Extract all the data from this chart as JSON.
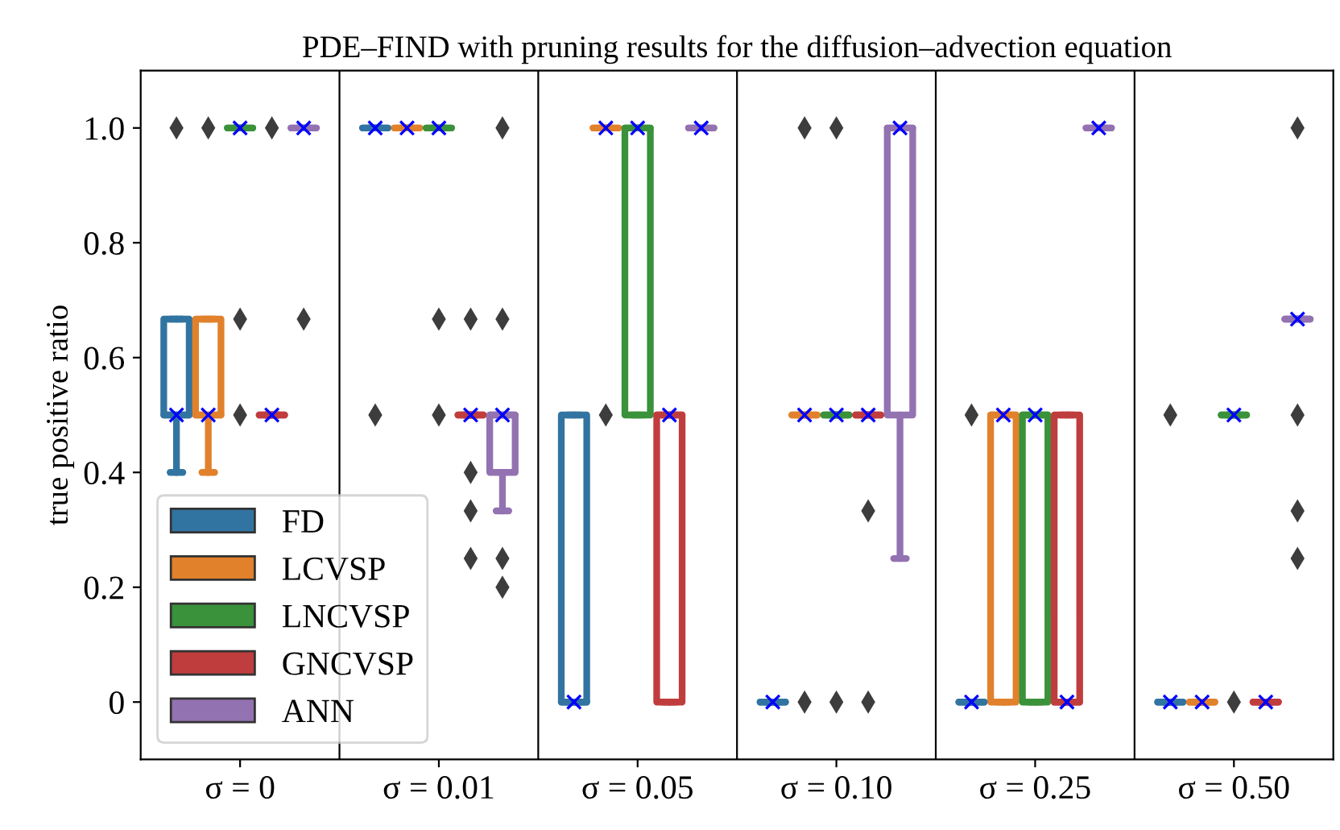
{
  "chart_data": {
    "type": "box",
    "title": "PDE–FIND with pruning results for the diffusion–advection equation",
    "ylabel": "true positive ratio",
    "categories": [
      "σ = 0",
      "σ = 0.01",
      "σ = 0.05",
      "σ = 0.10",
      "σ = 0.25",
      "σ = 0.50"
    ],
    "ylim": [
      -0.1,
      1.1
    ],
    "yticks": [
      {
        "value": 0,
        "label": "0"
      },
      0.2,
      0.4,
      0.6,
      0.8,
      {
        "value": 1,
        "label": "1.0"
      }
    ],
    "legend": "bottom left",
    "grid": false,
    "series": [
      {
        "name": "FD",
        "color": "#3274a1",
        "boxes": [
          {
            "low": 0.4,
            "q1": 0.5,
            "median": 0.5,
            "q3": 0.667,
            "high": 0.667,
            "mean": 0.5,
            "outliers": [
              1.0
            ]
          },
          {
            "low": 1,
            "q1": 1,
            "median": 1,
            "q3": 1,
            "high": 1,
            "mean": 1,
            "outliers": [
              0.5
            ]
          },
          {
            "low": 0,
            "q1": 0,
            "median": 0,
            "q3": 0.5,
            "high": 0.5,
            "mean": 0
          },
          {
            "low": 0,
            "q1": 0,
            "median": 0,
            "q3": 0,
            "high": 0,
            "mean": 0
          },
          {
            "low": 0,
            "q1": 0,
            "median": 0,
            "q3": 0,
            "high": 0,
            "mean": 0,
            "outliers": [
              0.5
            ]
          },
          {
            "low": 0,
            "q1": 0,
            "median": 0,
            "q3": 0,
            "high": 0,
            "mean": 0,
            "outliers": [
              0.5
            ]
          }
        ]
      },
      {
        "name": "LCVSP",
        "color": "#e1812c",
        "boxes": [
          {
            "low": 0.4,
            "q1": 0.5,
            "median": 0.5,
            "q3": 0.667,
            "high": 0.667,
            "mean": 0.5,
            "outliers": [
              1.0
            ]
          },
          {
            "low": 1,
            "q1": 1,
            "median": 1,
            "q3": 1,
            "high": 1,
            "mean": 1
          },
          {
            "low": 1,
            "q1": 1,
            "median": 1,
            "q3": 1,
            "high": 1,
            "mean": 1,
            "outliers": [
              0.5
            ]
          },
          {
            "low": 0.5,
            "q1": 0.5,
            "median": 0.5,
            "q3": 0.5,
            "high": 0.5,
            "mean": 0.5,
            "outliers": [
              1.0,
              0
            ]
          },
          {
            "low": 0,
            "q1": 0,
            "median": 0.5,
            "q3": 0.5,
            "high": 0.5,
            "mean": 0.5
          },
          {
            "low": 0,
            "q1": 0,
            "median": 0,
            "q3": 0,
            "high": 0,
            "mean": 0
          }
        ]
      },
      {
        "name": "LNCVSP",
        "color": "#3a923a",
        "boxes": [
          {
            "low": 1,
            "q1": 1,
            "median": 1,
            "q3": 1,
            "high": 1,
            "mean": 1,
            "outliers": [
              0.667,
              0.5
            ]
          },
          {
            "low": 1,
            "q1": 1,
            "median": 1,
            "q3": 1,
            "high": 1,
            "mean": 1,
            "outliers": [
              0.667,
              0.5
            ]
          },
          {
            "low": 0.5,
            "q1": 0.5,
            "median": 1,
            "q3": 1,
            "high": 1,
            "mean": 1
          },
          {
            "low": 0.5,
            "q1": 0.5,
            "median": 0.5,
            "q3": 0.5,
            "high": 0.5,
            "mean": 0.5,
            "outliers": [
              1.0,
              0
            ]
          },
          {
            "low": 0,
            "q1": 0,
            "median": 0.5,
            "q3": 0.5,
            "high": 0.5,
            "mean": 0.5
          },
          {
            "low": 0.5,
            "q1": 0.5,
            "median": 0.5,
            "q3": 0.5,
            "high": 0.5,
            "mean": 0.5,
            "outliers": [
              0
            ]
          }
        ]
      },
      {
        "name": "GNCVSP",
        "color": "#c03d3e",
        "boxes": [
          {
            "low": 0.5,
            "q1": 0.5,
            "median": 0.5,
            "q3": 0.5,
            "high": 0.5,
            "mean": 0.5,
            "outliers": [
              1.0
            ]
          },
          {
            "low": 0.5,
            "q1": 0.5,
            "median": 0.5,
            "q3": 0.5,
            "high": 0.5,
            "mean": 0.5,
            "outliers": [
              0.667,
              0.4,
              0.333,
              0.25
            ]
          },
          {
            "low": 0,
            "q1": 0,
            "median": 0.5,
            "q3": 0.5,
            "high": 0.5,
            "mean": 0.5
          },
          {
            "low": 0.5,
            "q1": 0.5,
            "median": 0.5,
            "q3": 0.5,
            "high": 0.5,
            "mean": 0.5,
            "outliers": [
              0.333,
              0
            ]
          },
          {
            "low": 0,
            "q1": 0,
            "median": 0,
            "q3": 0.5,
            "high": 0.5,
            "mean": 0
          },
          {
            "low": 0,
            "q1": 0,
            "median": 0,
            "q3": 0,
            "high": 0,
            "mean": 0
          }
        ]
      },
      {
        "name": "ANN",
        "color": "#9372b2",
        "boxes": [
          {
            "low": 1,
            "q1": 1,
            "median": 1,
            "q3": 1,
            "high": 1,
            "mean": 1,
            "outliers": [
              0.667
            ]
          },
          {
            "low": 0.333,
            "q1": 0.4,
            "median": 0.5,
            "q3": 0.5,
            "high": 0.5,
            "mean": 0.5,
            "outliers": [
              1.0,
              0.667,
              0.25,
              0.2
            ]
          },
          {
            "low": 1,
            "q1": 1,
            "median": 1,
            "q3": 1,
            "high": 1,
            "mean": 1
          },
          {
            "low": 0.25,
            "q1": 0.5,
            "median": 1,
            "q3": 1,
            "high": 1,
            "mean": 1
          },
          {
            "low": 1,
            "q1": 1,
            "median": 1,
            "q3": 1,
            "high": 1,
            "mean": 1
          },
          {
            "low": 0.667,
            "q1": 0.667,
            "median": 0.667,
            "q3": 0.667,
            "high": 0.667,
            "mean": 0.667,
            "outliers": [
              1.0,
              0.5,
              0.333,
              0.25
            ]
          }
        ]
      }
    ]
  }
}
